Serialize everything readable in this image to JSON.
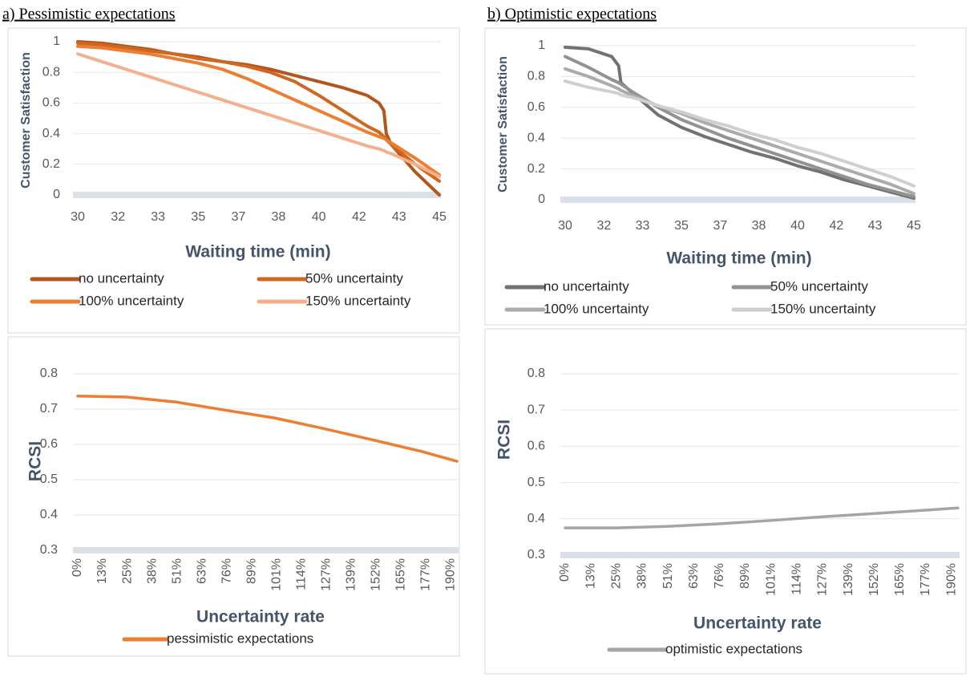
{
  "chart_data": [
    {
      "type": "line",
      "title": "a) Pessimistic expectations",
      "x_label": "Waiting time (min)",
      "y_label": "Customer Satisfaction",
      "x": [
        30,
        31,
        32,
        33,
        34,
        35,
        36,
        37,
        38,
        39,
        40,
        41,
        42,
        42.5,
        42.7,
        42.8,
        43,
        44,
        45
      ],
      "series": [
        {
          "name": "no uncertainty",
          "color": "#b4561c",
          "values": [
            1,
            0.99,
            0.97,
            0.95,
            0.92,
            0.9,
            0.87,
            0.85,
            0.82,
            0.78,
            0.74,
            0.7,
            0.65,
            0.6,
            0.55,
            0.4,
            0.33,
            0.15,
            0
          ]
        },
        {
          "name": "50% uncertainty",
          "color": "#d0671f",
          "values": [
            0.99,
            0.98,
            0.96,
            0.94,
            0.92,
            0.89,
            0.87,
            0.84,
            0.8,
            0.74,
            0.65,
            0.55,
            0.45,
            0.41,
            0.38,
            0.36,
            0.33,
            0.2,
            0.09
          ]
        },
        {
          "name": "100% uncertainty",
          "color": "#ed7d31",
          "values": [
            0.97,
            0.96,
            0.94,
            0.92,
            0.89,
            0.86,
            0.82,
            0.76,
            0.69,
            0.62,
            0.55,
            0.48,
            0.41,
            0.38,
            0.37,
            0.36,
            0.34,
            0.24,
            0.13
          ]
        },
        {
          "name": "150% uncertainty",
          "color": "#f4b08c",
          "values": [
            0.92,
            0.87,
            0.82,
            0.77,
            0.72,
            0.67,
            0.62,
            0.57,
            0.52,
            0.47,
            0.42,
            0.37,
            0.32,
            0.3,
            0.29,
            0.28,
            0.27,
            0.2,
            0.12
          ]
        }
      ],
      "xlim": [
        30,
        45
      ],
      "xticks": [
        30,
        {
          "value": 31.67,
          "label": "32"
        },
        {
          "value": 33.33,
          "label": "33"
        },
        35,
        {
          "value": 36.67,
          "label": "37"
        },
        {
          "value": 38.33,
          "label": "38"
        },
        40,
        {
          "value": 41.67,
          "label": "42"
        },
        {
          "value": 43.33,
          "label": "43"
        },
        45
      ],
      "ylim": [
        0,
        1
      ],
      "yticks": [
        0,
        0.2,
        0.4,
        0.6,
        0.8,
        1
      ],
      "grid": true,
      "legend": "bottom"
    },
    {
      "type": "line",
      "title": "b) Optimistic expectations",
      "x_label": "Waiting time (min)",
      "y_label": "Customer Satisfaction",
      "x": [
        30,
        31,
        32,
        32.3,
        32.4,
        33,
        34,
        35,
        36,
        37,
        38,
        39,
        40,
        41,
        42,
        43,
        44,
        45
      ],
      "series": [
        {
          "name": "no uncertainty",
          "color": "#767171",
          "values": [
            0.99,
            0.98,
            0.93,
            0.87,
            0.76,
            0.68,
            0.55,
            0.47,
            0.41,
            0.36,
            0.31,
            0.27,
            0.22,
            0.18,
            0.13,
            0.09,
            0.05,
            0.01
          ]
        },
        {
          "name": "50% uncertainty",
          "color": "#929292",
          "values": [
            0.93,
            0.86,
            0.78,
            0.76,
            0.75,
            0.69,
            0.6,
            0.52,
            0.46,
            0.4,
            0.35,
            0.3,
            0.25,
            0.2,
            0.15,
            0.1,
            0.06,
            0.02
          ]
        },
        {
          "name": "100% uncertainty",
          "color": "#ababab",
          "values": [
            0.85,
            0.8,
            0.74,
            0.72,
            0.71,
            0.67,
            0.61,
            0.56,
            0.5,
            0.45,
            0.4,
            0.35,
            0.3,
            0.25,
            0.2,
            0.15,
            0.1,
            0.04
          ]
        },
        {
          "name": "150% uncertainty",
          "color": "#d0cece",
          "values": [
            0.77,
            0.73,
            0.7,
            0.69,
            0.68,
            0.66,
            0.61,
            0.57,
            0.52,
            0.48,
            0.43,
            0.39,
            0.34,
            0.3,
            0.25,
            0.2,
            0.15,
            0.09
          ]
        }
      ],
      "xlim": [
        30,
        45
      ],
      "xticks": [
        30,
        {
          "value": 31.67,
          "label": "32"
        },
        {
          "value": 33.33,
          "label": "33"
        },
        35,
        {
          "value": 36.67,
          "label": "37"
        },
        {
          "value": 38.33,
          "label": "38"
        },
        40,
        {
          "value": 41.67,
          "label": "42"
        },
        {
          "value": 43.33,
          "label": "43"
        },
        45
      ],
      "ylim": [
        0,
        1
      ],
      "yticks": [
        0,
        0.2,
        0.4,
        0.6,
        0.8,
        1
      ],
      "grid": true,
      "legend": "bottom"
    },
    {
      "type": "line",
      "x_label": "Uncertainty rate",
      "y_label": "RCSI",
      "x": [
        0,
        25,
        50,
        75,
        100,
        125,
        150,
        175,
        193
      ],
      "series": [
        {
          "name": "pessimistic expectations",
          "color": "#ed7d31",
          "values": [
            0.737,
            0.734,
            0.72,
            0.697,
            0.675,
            0.645,
            0.613,
            0.58,
            0.552
          ]
        }
      ],
      "xlim": [
        0,
        193
      ],
      "xticks": [
        {
          "value": 0,
          "label": "0%"
        },
        {
          "value": 12.66,
          "label": "13%"
        },
        {
          "value": 25.32,
          "label": "25%"
        },
        {
          "value": 37.98,
          "label": "38%"
        },
        {
          "value": 50.64,
          "label": "51%"
        },
        {
          "value": 63.3,
          "label": "63%"
        },
        {
          "value": 75.96,
          "label": "76%"
        },
        {
          "value": 88.62,
          "label": "89%"
        },
        {
          "value": 101.28,
          "label": "101%"
        },
        {
          "value": 113.94,
          "label": "114%"
        },
        {
          "value": 126.6,
          "label": "127%"
        },
        {
          "value": 139.26,
          "label": "139%"
        },
        {
          "value": 151.92,
          "label": "152%"
        },
        {
          "value": 164.58,
          "label": "165%"
        },
        {
          "value": 177.24,
          "label": "177%"
        },
        {
          "value": 189.9,
          "label": "190%"
        }
      ],
      "ylim": [
        0.3,
        0.8
      ],
      "yticks": [
        0.3,
        0.4,
        0.5,
        0.6,
        0.7,
        0.8
      ],
      "grid": true,
      "legend": "bottom"
    },
    {
      "type": "line",
      "x_label": "Uncertainty rate",
      "y_label": "RCSI",
      "x": [
        0,
        25,
        50,
        75,
        100,
        125,
        150,
        175,
        193
      ],
      "series": [
        {
          "name": "optimistic expectations",
          "color": "#a5a5a5",
          "values": [
            0.375,
            0.375,
            0.379,
            0.386,
            0.395,
            0.405,
            0.414,
            0.423,
            0.43
          ]
        }
      ],
      "xlim": [
        0,
        193
      ],
      "xticks": [
        {
          "value": 0,
          "label": "0%"
        },
        {
          "value": 12.66,
          "label": "13%"
        },
        {
          "value": 25.32,
          "label": "25%"
        },
        {
          "value": 37.98,
          "label": "38%"
        },
        {
          "value": 50.64,
          "label": "51%"
        },
        {
          "value": 63.3,
          "label": "63%"
        },
        {
          "value": 75.96,
          "label": "76%"
        },
        {
          "value": 88.62,
          "label": "89%"
        },
        {
          "value": 101.28,
          "label": "101%"
        },
        {
          "value": 113.94,
          "label": "114%"
        },
        {
          "value": 126.6,
          "label": "127%"
        },
        {
          "value": 139.26,
          "label": "139%"
        },
        {
          "value": 151.92,
          "label": "152%"
        },
        {
          "value": 164.58,
          "label": "165%"
        },
        {
          "value": 177.24,
          "label": "177%"
        },
        {
          "value": 189.9,
          "label": "190%"
        }
      ],
      "ylim": [
        0.3,
        0.8
      ],
      "yticks": [
        0.3,
        0.4,
        0.5,
        0.6,
        0.7,
        0.8
      ],
      "grid": true,
      "legend": "bottom"
    }
  ]
}
